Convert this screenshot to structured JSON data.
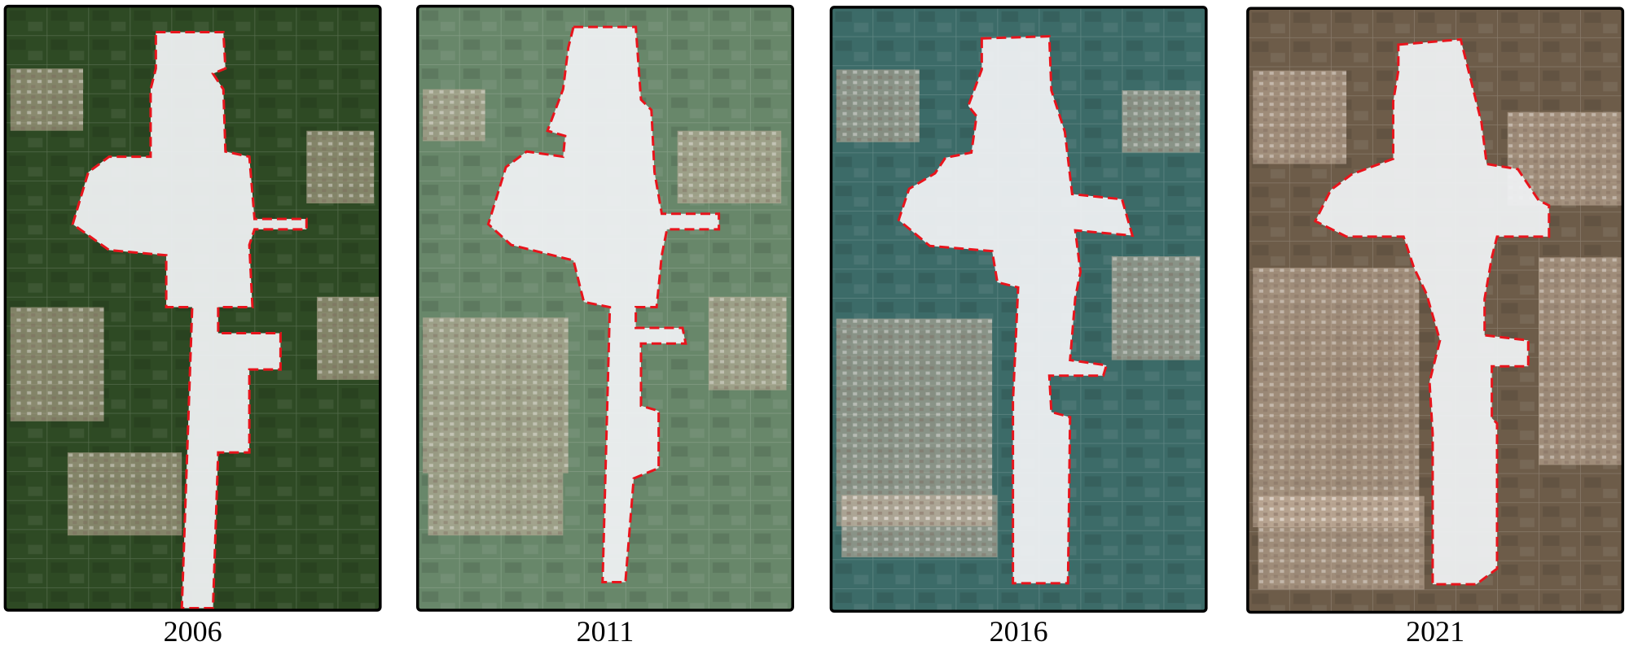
{
  "panels": [
    {
      "label": "2006"
    },
    {
      "label": "2011"
    },
    {
      "label": "2016"
    },
    {
      "label": "2021"
    }
  ]
}
